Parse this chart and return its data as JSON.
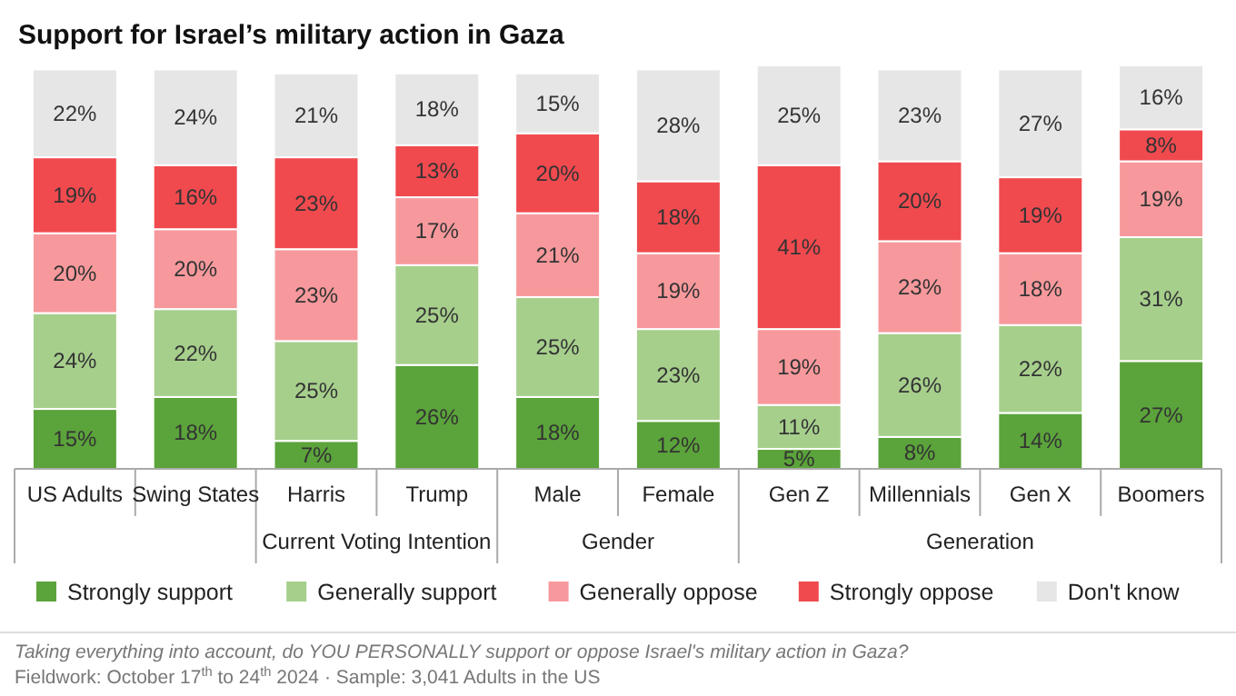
{
  "chart_data": {
    "type": "bar",
    "stacked": true,
    "title": "Support for Israel’s military action in Gaza",
    "categories": [
      "US Adults",
      "Swing States",
      "Harris",
      "Trump",
      "Male",
      "Female",
      "Gen Z",
      "Millennials",
      "Gen X",
      "Boomers"
    ],
    "series": [
      {
        "name": "Strongly support",
        "color": "#5ba33b",
        "values": [
          15,
          18,
          7,
          26,
          18,
          12,
          5,
          8,
          14,
          27
        ],
        "value_labels": [
          "15%",
          "18%",
          "7%",
          "26%",
          "18%",
          "12%",
          "5%",
          "8%",
          "14%",
          "27%"
        ]
      },
      {
        "name": "Generally support",
        "color": "#a6cf8c",
        "values": [
          24,
          22,
          25,
          25,
          25,
          23,
          11,
          26,
          22,
          31
        ],
        "value_labels": [
          "24%",
          "22%",
          "25%",
          "25%",
          "25%",
          "23%",
          "11%",
          "26%",
          "22%",
          "31%"
        ]
      },
      {
        "name": "Generally oppose",
        "color": "#f7999c",
        "values": [
          20,
          20,
          23,
          17,
          21,
          19,
          19,
          23,
          18,
          19
        ],
        "value_labels": [
          "20%",
          "20%",
          "23%",
          "17%",
          "21%",
          "19%",
          "19%",
          "23%",
          "18%",
          "19%"
        ]
      },
      {
        "name": "Strongly oppose",
        "color": "#f04a4f",
        "values": [
          19,
          16,
          23,
          13,
          20,
          18,
          41,
          20,
          19,
          8
        ],
        "value_labels": [
          "19%",
          "16%",
          "23%",
          "13%",
          "20%",
          "18%",
          "41%",
          "20%",
          "19%",
          "8%"
        ]
      },
      {
        "name": "Don't know",
        "color": "#e6e6e6",
        "values": [
          22,
          24,
          21,
          18,
          15,
          28,
          25,
          23,
          27,
          16
        ],
        "value_labels": [
          "22%",
          "24%",
          "21%",
          "18%",
          "15%",
          "28%",
          "25%",
          "23%",
          "27%",
          "16%"
        ]
      }
    ],
    "legend": "bottom",
    "annotations": [
      "Current Voting Intention",
      "Gender",
      "Generation",
      "Taking everything into account, do YOU PERSONALLY support or oppose Israel's military action in Gaza?",
      "Fieldwork: October 17$^{th}$ to 24$^{th}$ 2024 · Sample: 3,041 Adults in the US"
    ]
  }
}
